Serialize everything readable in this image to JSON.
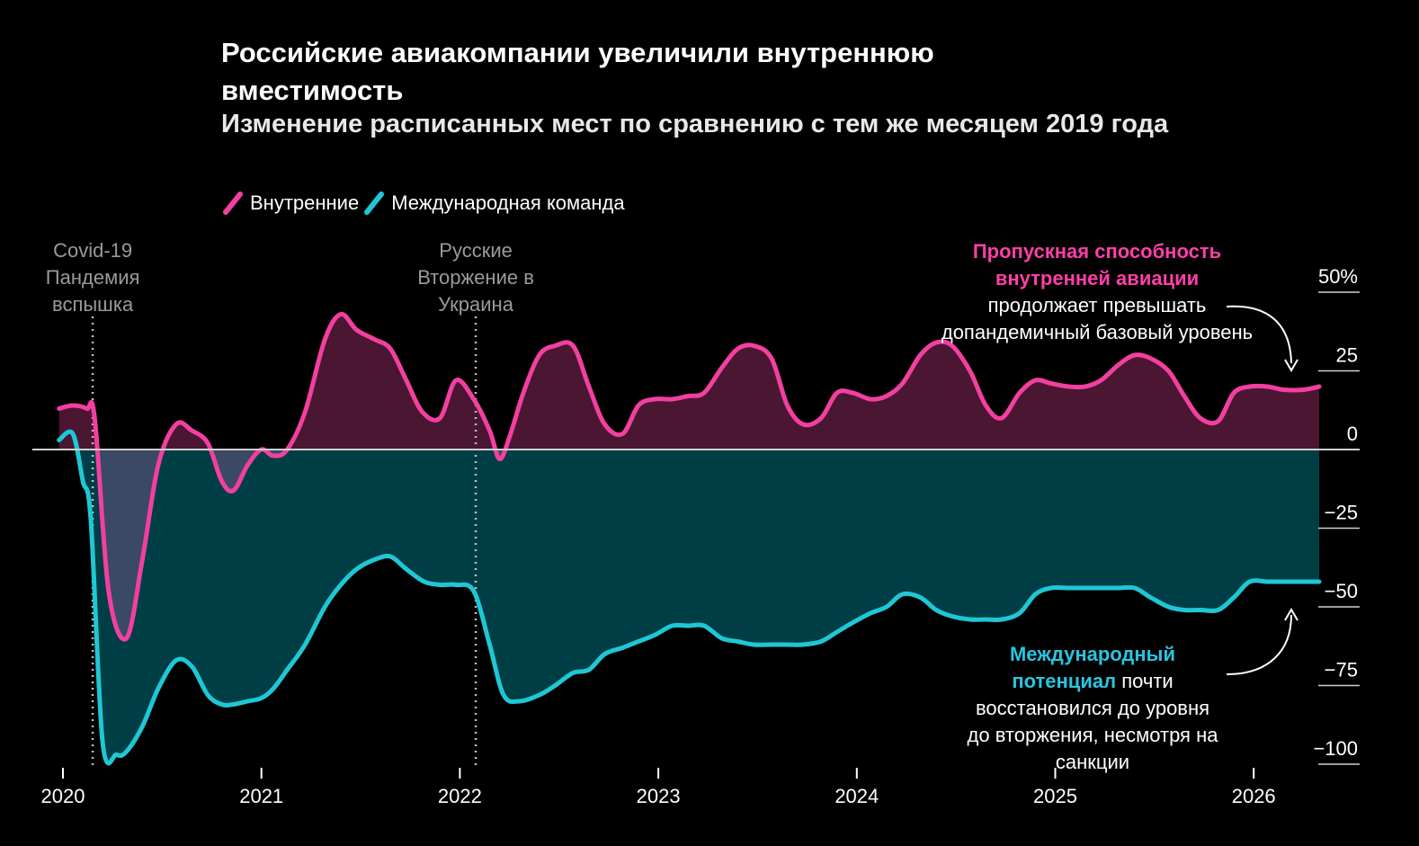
{
  "chart": {
    "title": "Российские авиакомпании увеличили внутреннюю вместимость",
    "subtitle": "Изменение расписанных мест по сравнению с тем же месяцем 2019 года"
  },
  "legend": [
    {
      "name": "Внутренние",
      "color": "#f23fa0"
    },
    {
      "name": "Международная команда",
      "color": "#1fc7d4"
    }
  ],
  "events": [
    {
      "x": 2020.15,
      "lines": [
        "Covid-19",
        "Пандемия",
        "вспышка"
      ]
    },
    {
      "x": 2022.08,
      "lines": [
        "Русские",
        "Вторжение в",
        "Украина"
      ]
    }
  ],
  "annotations": {
    "domestic": {
      "highlight": "Пропускная способность внутренней авиации",
      "rest": "продолжает превышать допандемичный базовый уровень"
    },
    "international": {
      "highlight": "Международный потенциал",
      "rest": "почти восстановился до уровня до вторжения, несмотря на санкции"
    }
  },
  "colors": {
    "domestic": "#f23fa0",
    "international": "#1fc7d4",
    "domestic_fill_pos": "#4a1632",
    "domestic_fill_neg": "#3d4a66",
    "international_fill": "#003e46",
    "highlight_domestic": "#ff3fa8",
    "highlight_international": "#29c5e0"
  },
  "chart_data": {
    "type": "area",
    "title": "Российские авиакомпании увеличили внутреннюю вместимость",
    "subtitle": "Изменение расписанных мест по сравнению с тем же месяцем 2019 года",
    "xlabel": "",
    "ylabel": "",
    "xlim": [
      2019.98,
      2026.45
    ],
    "ylim": [
      -100,
      50
    ],
    "x_ticks": [
      2020,
      2021,
      2022,
      2023,
      2024,
      2025,
      2026
    ],
    "y_ticks": [
      50,
      25,
      0,
      -25,
      -50,
      -75,
      -100
    ],
    "y_tick_labels": [
      "50%",
      "25",
      "0",
      "−25",
      "−50",
      "−75",
      "−100"
    ],
    "grid": false,
    "legend_position": "top-left",
    "series": [
      {
        "name": "Внутренние",
        "x": [
          2019.98,
          2020.05,
          2020.12,
          2020.16,
          2020.23,
          2020.32,
          2020.4,
          2020.48,
          2020.57,
          2020.65,
          2020.73,
          2020.8,
          2020.86,
          2020.93,
          2021.0,
          2021.06,
          2021.13,
          2021.22,
          2021.32,
          2021.4,
          2021.48,
          2021.57,
          2021.65,
          2021.73,
          2021.81,
          2021.9,
          2021.98,
          2022.07,
          2022.15,
          2022.2,
          2022.25,
          2022.32,
          2022.4,
          2022.48,
          2022.57,
          2022.65,
          2022.73,
          2022.82,
          2022.9,
          2022.98,
          2023.07,
          2023.15,
          2023.23,
          2023.32,
          2023.4,
          2023.48,
          2023.57,
          2023.65,
          2023.73,
          2023.82,
          2023.9,
          2023.98,
          2024.07,
          2024.15,
          2024.23,
          2024.32,
          2024.4,
          2024.48,
          2024.57,
          2024.65,
          2024.73,
          2024.82,
          2024.9,
          2024.98,
          2025.07,
          2025.15,
          2025.23,
          2025.32,
          2025.4,
          2025.48,
          2025.57,
          2025.65,
          2025.73,
          2025.82,
          2025.9,
          2025.98,
          2026.07,
          2026.15,
          2026.25,
          2026.33
        ],
        "values": [
          13,
          14,
          13,
          10,
          -45,
          -60,
          -35,
          -5,
          8,
          6,
          2,
          -10,
          -13,
          -5,
          0,
          -2,
          0,
          12,
          35,
          43,
          38,
          35,
          32,
          22,
          12,
          10,
          22,
          16,
          6,
          -3,
          4,
          18,
          30,
          33,
          33,
          20,
          8,
          5,
          14,
          16,
          16,
          17,
          18,
          26,
          32,
          33,
          29,
          14,
          8,
          10,
          18,
          18,
          16,
          17,
          21,
          30,
          34,
          33,
          25,
          14,
          10,
          18,
          22,
          21,
          20,
          20,
          22,
          27,
          30,
          29,
          25,
          17,
          10,
          9,
          18,
          20,
          20,
          19,
          19,
          20
        ]
      },
      {
        "name": "Международная команда",
        "x": [
          2019.98,
          2020.05,
          2020.1,
          2020.14,
          2020.2,
          2020.27,
          2020.32,
          2020.4,
          2020.48,
          2020.57,
          2020.65,
          2020.73,
          2020.8,
          2020.86,
          2020.93,
          2021.0,
          2021.06,
          2021.13,
          2021.22,
          2021.32,
          2021.4,
          2021.48,
          2021.57,
          2021.65,
          2021.73,
          2021.82,
          2021.9,
          2021.98,
          2022.07,
          2022.15,
          2022.22,
          2022.3,
          2022.4,
          2022.48,
          2022.57,
          2022.65,
          2022.73,
          2022.82,
          2022.9,
          2022.98,
          2023.07,
          2023.15,
          2023.23,
          2023.32,
          2023.4,
          2023.48,
          2023.57,
          2023.65,
          2023.73,
          2023.82,
          2023.9,
          2023.98,
          2024.07,
          2024.15,
          2024.23,
          2024.32,
          2024.4,
          2024.48,
          2024.57,
          2024.65,
          2024.73,
          2024.82,
          2024.9,
          2024.98,
          2025.07,
          2025.15,
          2025.23,
          2025.32,
          2025.4,
          2025.48,
          2025.57,
          2025.65,
          2025.73,
          2025.82,
          2025.9,
          2025.98,
          2026.07,
          2026.15,
          2026.25,
          2026.33
        ],
        "values": [
          3,
          5,
          -10,
          -22,
          -93,
          -97,
          -96,
          -88,
          -76,
          -67,
          -69,
          -78,
          -81,
          -81,
          -80,
          -79,
          -76,
          -70,
          -62,
          -50,
          -43,
          -38,
          -35,
          -34,
          -38,
          -42,
          -43,
          -43,
          -45,
          -62,
          -78,
          -80,
          -78,
          -75,
          -71,
          -70,
          -65,
          -63,
          -61,
          -59,
          -56,
          -56,
          -56,
          -60,
          -61,
          -62,
          -62,
          -62,
          -62,
          -61,
          -58,
          -55,
          -52,
          -50,
          -46,
          -47,
          -51,
          -53,
          -54,
          -54,
          -54,
          -52,
          -46,
          -44,
          -44,
          -44,
          -44,
          -44,
          -44,
          -47,
          -50,
          -51,
          -51,
          -51,
          -47,
          -42,
          -42,
          -42,
          -42,
          -42
        ]
      }
    ]
  }
}
